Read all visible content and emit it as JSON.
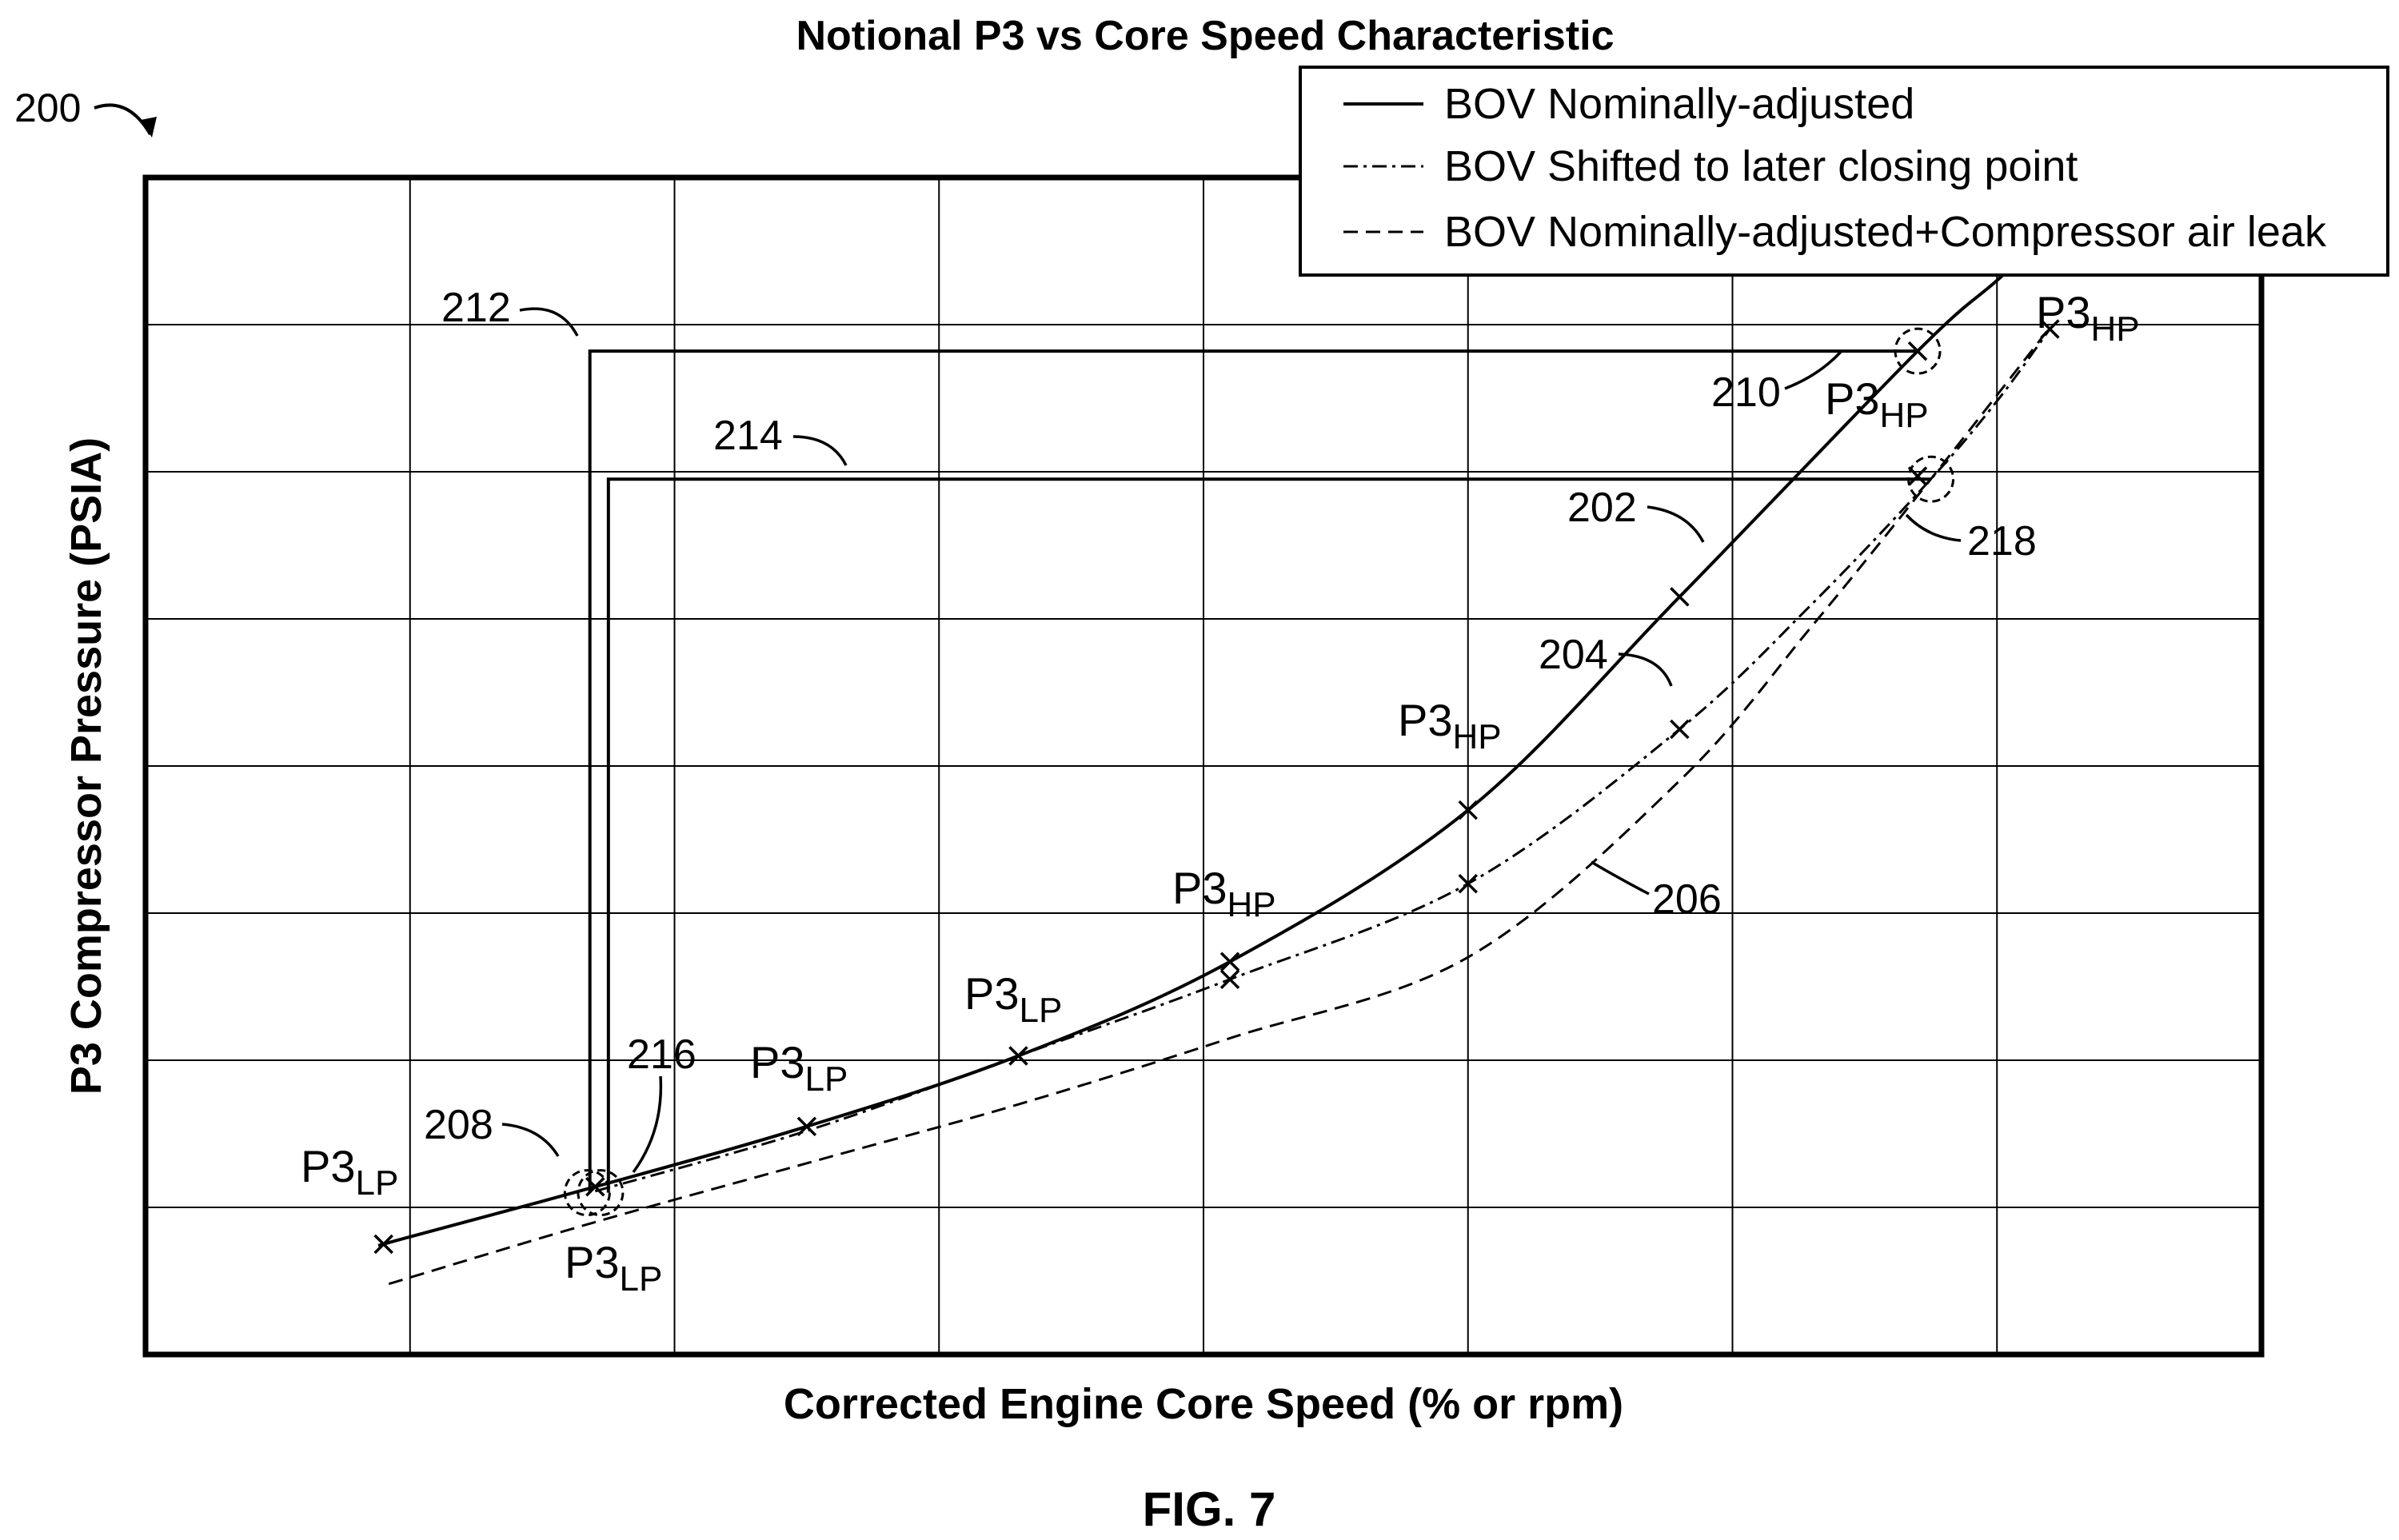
{
  "figure": {
    "ref": "200",
    "caption": "FIG. 7"
  },
  "chart_data": {
    "type": "line",
    "title": "Notional P3 vs Core Speed Characteristic",
    "xlabel": "Corrected Engine Core Speed (% or rpm)",
    "ylabel": "P3 Compressor Pressure (PSIA)",
    "xlim": [
      0,
      8
    ],
    "ylim": [
      0,
      8
    ],
    "grid": true,
    "tick_labels": "none",
    "legend": {
      "placement": "top-right",
      "entries": [
        "BOV Nominally-adjusted",
        "BOV Shifted to later closing point",
        "BOV Nominally-adjusted+Compressor air leak"
      ]
    },
    "series": [
      {
        "name": "BOV Nominally-adjusted",
        "style": "solid",
        "label": "202",
        "points": [
          [
            0.88,
            0.74
          ],
          [
            1.0,
            0.8
          ],
          [
            1.7,
            1.14
          ],
          [
            2.5,
            1.55
          ],
          [
            3.3,
            2.03
          ],
          [
            4.1,
            2.67
          ],
          [
            5.0,
            3.7
          ],
          [
            5.8,
            5.15
          ],
          [
            6.7,
            6.82
          ],
          [
            7.0,
            7.3
          ],
          [
            7.25,
            7.7
          ]
        ],
        "markers": [
          [
            0.9,
            0.75
          ],
          [
            1.7,
            1.14
          ],
          [
            2.5,
            1.55
          ],
          [
            3.3,
            2.03
          ],
          [
            4.1,
            2.67
          ],
          [
            5.0,
            3.7
          ],
          [
            5.8,
            5.15
          ],
          [
            6.7,
            6.82
          ],
          [
            7.25,
            7.7
          ]
        ]
      },
      {
        "name": "BOV Shifted to later closing point",
        "style": "dashdot",
        "label": "204",
        "points": [
          [
            1.7,
            1.11
          ],
          [
            2.5,
            1.52
          ],
          [
            3.3,
            2.03
          ],
          [
            4.1,
            2.55
          ],
          [
            5.0,
            3.2
          ],
          [
            5.8,
            4.25
          ],
          [
            6.3,
            5.1
          ],
          [
            6.75,
            5.95
          ],
          [
            7.0,
            6.48
          ],
          [
            7.2,
            6.97
          ]
        ],
        "markers": [
          [
            4.1,
            2.55
          ],
          [
            5.0,
            3.2
          ],
          [
            5.8,
            4.25
          ],
          [
            6.7,
            5.97
          ],
          [
            7.2,
            6.97
          ]
        ]
      },
      {
        "name": "BOV Nominally-adjusted+Compressor air leak",
        "style": "dashed",
        "label": "206",
        "points": [
          [
            0.92,
            0.48
          ],
          [
            1.7,
            0.9
          ],
          [
            2.5,
            1.3
          ],
          [
            3.3,
            1.7
          ],
          [
            4.1,
            2.15
          ],
          [
            5.0,
            2.7
          ],
          [
            5.8,
            3.9
          ],
          [
            6.3,
            4.95
          ],
          [
            6.75,
            5.95
          ],
          [
            7.2,
            6.98
          ]
        ],
        "markers": []
      }
    ],
    "operating_point_labels": [
      {
        "text": "P3",
        "sub": "LP",
        "ref_point": [
          0.88,
          0.74
        ]
      },
      {
        "text": "P3",
        "sub": "LP",
        "ref_point": [
          1.7,
          1.05
        ]
      },
      {
        "text": "P3",
        "sub": "LP",
        "ref_point": [
          2.5,
          1.55
        ]
      },
      {
        "text": "P3",
        "sub": "LP",
        "ref_point": [
          3.3,
          2.03
        ]
      },
      {
        "text": "P3",
        "sub": "HP",
        "ref_point": [
          4.1,
          2.67
        ]
      },
      {
        "text": "P3",
        "sub": "HP",
        "ref_point": [
          5.0,
          3.7
        ]
      },
      {
        "text": "P3",
        "sub": "HP",
        "ref_point": [
          6.65,
          6.4
        ]
      },
      {
        "text": "P3",
        "sub": "HP",
        "ref_point": [
          7.2,
          6.97
        ]
      }
    ],
    "reference_lines": [
      {
        "label": "212",
        "x": 1.68,
        "y": 6.82,
        "x_end": 6.7
      },
      {
        "label": "214",
        "x": 1.75,
        "y": 5.95,
        "x_end": 6.75
      }
    ],
    "circled_points": [
      {
        "label": "208",
        "x": 1.67,
        "y": 1.1
      },
      {
        "label": "216",
        "x": 1.72,
        "y": 1.1
      },
      {
        "label": "210",
        "x": 6.7,
        "y": 6.82
      },
      {
        "label": "218",
        "x": 6.75,
        "y": 5.95
      }
    ]
  }
}
